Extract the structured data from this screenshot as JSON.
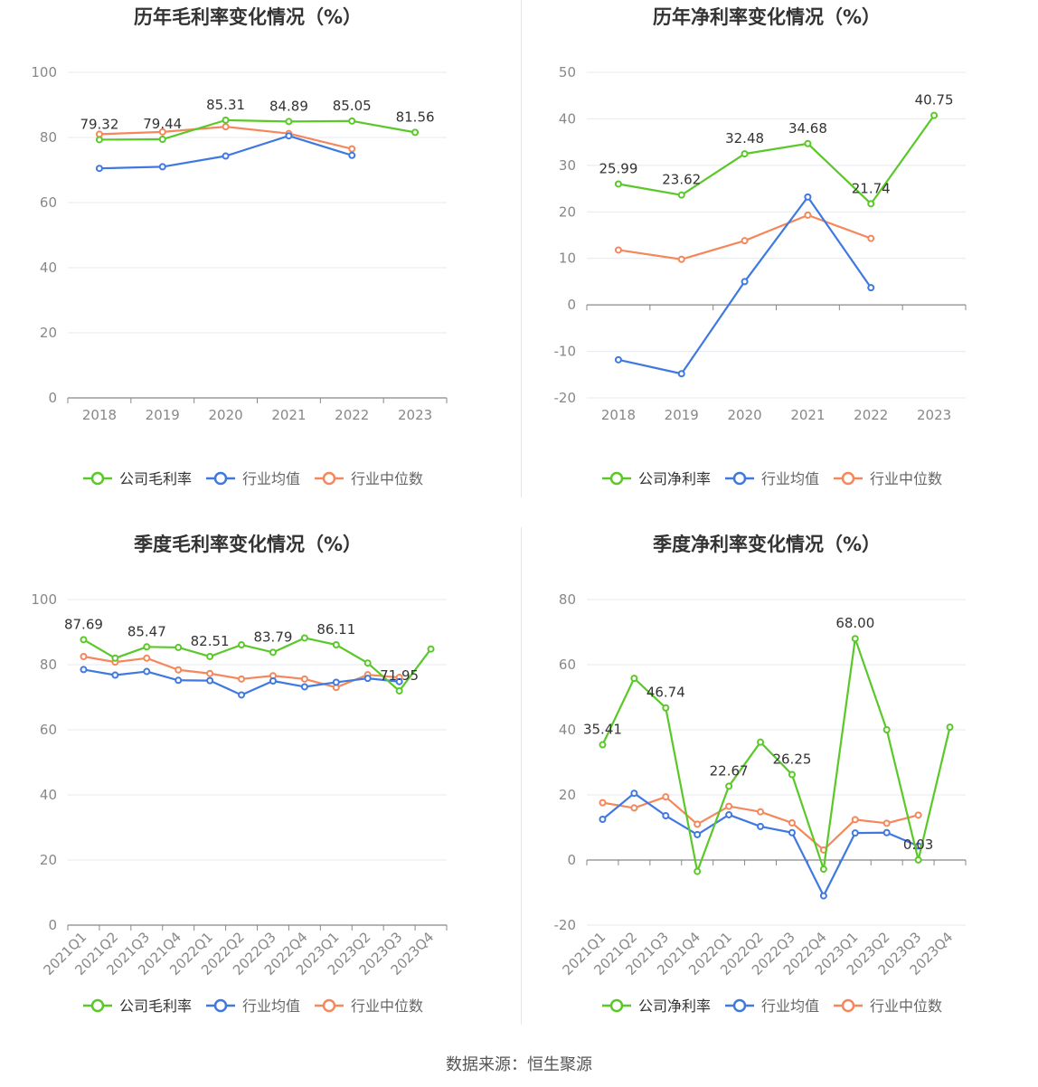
{
  "source_label": "数据来源：恒生聚源",
  "colors": {
    "company": "#5ac828",
    "avg": "#3f79e0",
    "median": "#f4875b",
    "grid": "#e6e8f0",
    "axis": "#888888",
    "text": "#333333",
    "tick": "#888888"
  },
  "chart_data": [
    {
      "type": "line",
      "title": "历年毛利率变化情况（%）",
      "categories": [
        "2018",
        "2019",
        "2020",
        "2021",
        "2022",
        "2023"
      ],
      "ylim": [
        0,
        100
      ],
      "yticks": [
        0,
        20,
        40,
        60,
        80,
        100
      ],
      "rotate_x": false,
      "legend": [
        "公司毛利率",
        "行业均值",
        "行业中位数"
      ],
      "series": [
        {
          "name": "公司毛利率",
          "key": "company",
          "values": [
            79.32,
            79.44,
            85.31,
            84.89,
            85.05,
            81.56
          ],
          "labels": [
            true,
            true,
            true,
            true,
            true,
            true
          ]
        },
        {
          "name": "行业均值",
          "key": "avg",
          "values": [
            70.5,
            71.0,
            74.3,
            80.5,
            74.5,
            null
          ]
        },
        {
          "name": "行业中位数",
          "key": "median",
          "values": [
            81.0,
            81.7,
            83.3,
            81.2,
            76.5,
            null
          ]
        }
      ]
    },
    {
      "type": "line",
      "title": "历年净利率变化情况（%）",
      "categories": [
        "2018",
        "2019",
        "2020",
        "2021",
        "2022",
        "2023"
      ],
      "ylim": [
        -20,
        50
      ],
      "yticks": [
        -20,
        -10,
        0,
        10,
        20,
        30,
        40,
        50
      ],
      "rotate_x": false,
      "legend": [
        "公司净利率",
        "行业均值",
        "行业中位数"
      ],
      "series": [
        {
          "name": "公司净利率",
          "key": "company",
          "values": [
            25.99,
            23.62,
            32.48,
            34.68,
            21.74,
            40.75
          ],
          "labels": [
            true,
            true,
            true,
            true,
            true,
            true
          ]
        },
        {
          "name": "行业均值",
          "key": "avg",
          "values": [
            -11.8,
            -14.8,
            5.0,
            23.2,
            3.7,
            null
          ]
        },
        {
          "name": "行业中位数",
          "key": "median",
          "values": [
            11.8,
            9.8,
            13.8,
            19.3,
            14.3,
            null
          ]
        }
      ]
    },
    {
      "type": "line",
      "title": "季度毛利率变化情况（%）",
      "categories": [
        "2021Q1",
        "2021Q2",
        "2021Q3",
        "2021Q4",
        "2022Q1",
        "2022Q2",
        "2022Q3",
        "2022Q4",
        "2023Q1",
        "2023Q2",
        "2023Q3",
        "2023Q4"
      ],
      "ylim": [
        0,
        100
      ],
      "yticks": [
        0,
        20,
        40,
        60,
        80,
        100
      ],
      "rotate_x": true,
      "legend": [
        "公司毛利率",
        "行业均值",
        "行业中位数"
      ],
      "series": [
        {
          "name": "公司毛利率",
          "key": "company",
          "values": [
            87.69,
            82.0,
            85.47,
            85.3,
            82.51,
            86.1,
            83.79,
            88.2,
            86.11,
            80.5,
            71.95,
            84.8
          ],
          "labels": [
            true,
            false,
            true,
            false,
            true,
            false,
            true,
            false,
            true,
            false,
            true,
            false
          ]
        },
        {
          "name": "行业均值",
          "key": "avg",
          "values": [
            78.5,
            76.8,
            77.9,
            75.2,
            75.1,
            70.7,
            75.0,
            73.2,
            74.6,
            75.8,
            74.8,
            null
          ]
        },
        {
          "name": "行业中位数",
          "key": "median",
          "values": [
            82.5,
            80.8,
            82.0,
            78.4,
            77.3,
            75.6,
            76.6,
            75.6,
            73.0,
            76.9,
            76.1,
            null
          ]
        }
      ]
    },
    {
      "type": "line",
      "title": "季度净利率变化情况（%）",
      "categories": [
        "2021Q1",
        "2021Q2",
        "2021Q3",
        "2021Q4",
        "2022Q1",
        "2022Q2",
        "2022Q3",
        "2022Q4",
        "2023Q1",
        "2023Q2",
        "2023Q3",
        "2023Q4"
      ],
      "ylim": [
        -20,
        80
      ],
      "yticks": [
        -20,
        0,
        20,
        40,
        60,
        80
      ],
      "rotate_x": true,
      "legend": [
        "公司净利率",
        "行业均值",
        "行业中位数"
      ],
      "series": [
        {
          "name": "公司净利率",
          "key": "company",
          "values": [
            35.41,
            55.8,
            46.74,
            -3.5,
            22.67,
            36.2,
            26.25,
            -2.8,
            68.0,
            40.0,
            0.03,
            40.8
          ],
          "labels": [
            true,
            false,
            true,
            false,
            true,
            false,
            true,
            false,
            true,
            false,
            true,
            false
          ]
        },
        {
          "name": "行业均值",
          "key": "avg",
          "values": [
            12.5,
            20.5,
            13.6,
            7.8,
            13.9,
            10.3,
            8.4,
            -11.0,
            8.3,
            8.4,
            4.3,
            null
          ]
        },
        {
          "name": "行业中位数",
          "key": "median",
          "values": [
            17.6,
            16.0,
            19.4,
            11.0,
            16.5,
            14.8,
            11.4,
            3.1,
            12.4,
            11.3,
            13.8,
            null
          ]
        }
      ]
    }
  ]
}
